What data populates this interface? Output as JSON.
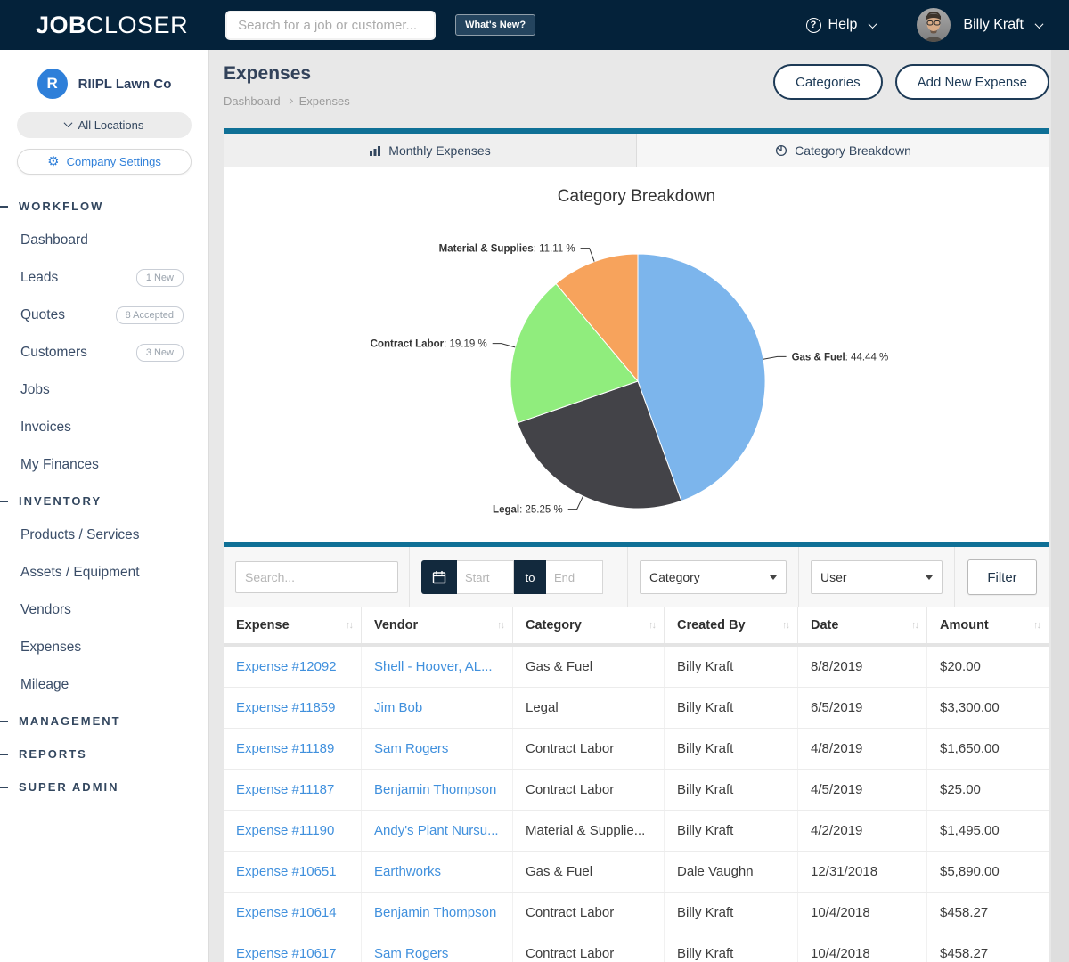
{
  "navbar": {
    "logo_bold": "JOB",
    "logo_light": "CLOSER",
    "search_placeholder": "Search for a job or customer...",
    "whats_new_label": "What's New?",
    "help_label": "Help",
    "user_name": "Billy Kraft"
  },
  "sidebar": {
    "company_initial": "R",
    "company_name": "RIIPL Lawn Co",
    "locations_label": "All Locations",
    "settings_label": "Company Settings",
    "sections": [
      {
        "label": "WORKFLOW",
        "items": [
          {
            "label": "Dashboard"
          },
          {
            "label": "Leads",
            "badge": "1 New"
          },
          {
            "label": "Quotes",
            "badge": "8 Accepted"
          },
          {
            "label": "Customers",
            "badge": "3 New"
          },
          {
            "label": "Jobs"
          },
          {
            "label": "Invoices"
          },
          {
            "label": "My Finances"
          }
        ]
      },
      {
        "label": "INVENTORY",
        "items": [
          {
            "label": "Products / Services"
          },
          {
            "label": "Assets / Equipment"
          },
          {
            "label": "Vendors"
          },
          {
            "label": "Expenses"
          },
          {
            "label": "Mileage"
          }
        ]
      },
      {
        "label": "MANAGEMENT",
        "items": []
      },
      {
        "label": "REPORTS",
        "items": []
      },
      {
        "label": "SUPER ADMIN",
        "items": []
      }
    ]
  },
  "page": {
    "title": "Expenses",
    "breadcrumb": [
      "Dashboard",
      "Expenses"
    ],
    "actions": [
      "Categories",
      "Add New Expense"
    ]
  },
  "tabs": [
    {
      "label": "Monthly Expenses",
      "icon": "bar-chart-icon",
      "active": false
    },
    {
      "label": "Category Breakdown",
      "icon": "pie-chart-icon",
      "active": true
    }
  ],
  "chart_data": {
    "type": "pie",
    "title": "Category Breakdown",
    "categories": [
      "Gas & Fuel",
      "Legal",
      "Contract Labor",
      "Material & Supplies"
    ],
    "values": [
      44.44,
      25.25,
      19.19,
      11.11
    ],
    "colors": [
      "#7cb5ec",
      "#434348",
      "#90ed7d",
      "#f7a35c"
    ],
    "unit": "%",
    "start_angle": 0,
    "direction": "clockwise",
    "legend": false,
    "labels_outside": true
  },
  "filters": {
    "search_placeholder": "Search...",
    "start_placeholder": "Start",
    "to_label": "to",
    "end_placeholder": "End",
    "category_value": "Category",
    "user_value": "User",
    "filter_button": "Filter"
  },
  "table": {
    "columns": [
      "Expense",
      "Vendor",
      "Category",
      "Created By",
      "Date",
      "Amount"
    ],
    "rows": [
      [
        "Expense #12092",
        "Shell - Hoover, AL...",
        "Gas & Fuel",
        "Billy Kraft",
        "8/8/2019",
        "$20.00"
      ],
      [
        "Expense #11859",
        "Jim Bob",
        "Legal",
        "Billy Kraft",
        "6/5/2019",
        "$3,300.00"
      ],
      [
        "Expense #11189",
        "Sam Rogers",
        "Contract Labor",
        "Billy Kraft",
        "4/8/2019",
        "$1,650.00"
      ],
      [
        "Expense #11187",
        "Benjamin Thompson",
        "Contract Labor",
        "Billy Kraft",
        "4/5/2019",
        "$25.00"
      ],
      [
        "Expense #11190",
        "Andy's Plant Nursu...",
        "Material & Supplie...",
        "Billy Kraft",
        "4/2/2019",
        "$1,495.00"
      ],
      [
        "Expense #10651",
        "Earthworks",
        "Gas & Fuel",
        "Dale Vaughn",
        "12/31/2018",
        "$5,890.00"
      ],
      [
        "Expense #10614",
        "Benjamin Thompson",
        "Contract Labor",
        "Billy Kraft",
        "10/4/2018",
        "$458.27"
      ],
      [
        "Expense #10617",
        "Sam Rogers",
        "Contract Labor",
        "Billy Kraft",
        "10/4/2018",
        "$458.27"
      ]
    ]
  },
  "colors": {
    "navbar_navy": "#04223a",
    "accent_teal": "#0f7096",
    "link_blue": "#4090dd",
    "brand_blue": "#2e7fd9"
  }
}
